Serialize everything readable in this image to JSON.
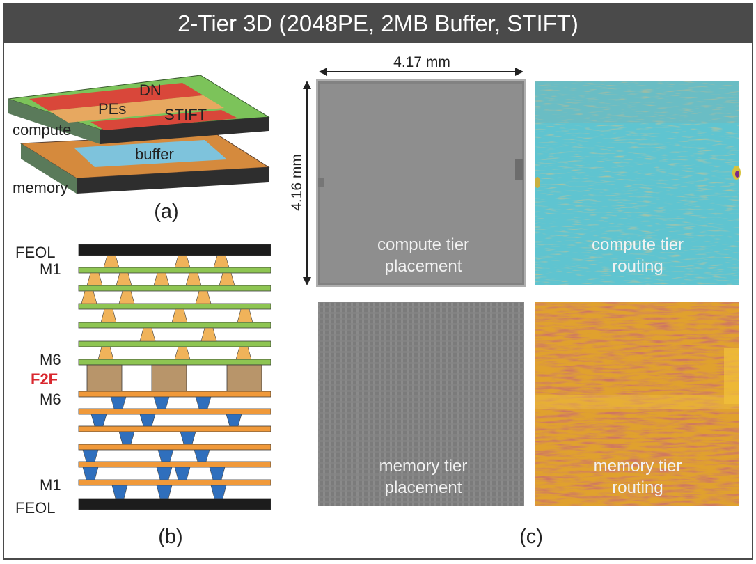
{
  "title": "2-Tier 3D (2048PE, 2MB Buffer, STIFT)",
  "colors": {
    "title_bar": "#4a4a4a",
    "compute_base": "#7cc35a",
    "dn_stripe": "#d9473a",
    "pe_block": "#e7a860",
    "memory_base": "#d58a3d",
    "buffer_block": "#7ec3dc",
    "metal_compute": "#8ec552",
    "metal_memory": "#f0993a",
    "via_compute": "#f0b35a",
    "via_memory": "#2f6fbd",
    "f2f_bond": "#b8956a",
    "feol": "#1c1c1c",
    "f2f_label": "#d9272e"
  },
  "panel_a": {
    "caption": "(a)",
    "labels": {
      "dn": "DN",
      "pes": "PEs",
      "stift": "STIFT",
      "buffer": "buffer",
      "compute": "compute",
      "memory": "memory"
    }
  },
  "panel_b": {
    "caption": "(b)",
    "layer_labels": {
      "feol_top": "FEOL",
      "m1_top": "M1",
      "m6_top": "M6",
      "f2f": "F2F",
      "m6_bottom": "M6",
      "m1_bottom": "M1",
      "feol_bottom": "FEOL"
    }
  },
  "panel_c": {
    "caption": "(c)",
    "width_dim": "4.17 mm",
    "height_dim": "4.16 mm",
    "images": [
      {
        "line1": "compute tier",
        "line2": "placement",
        "icon": "placement-map"
      },
      {
        "line1": "compute tier",
        "line2": "routing",
        "icon": "routing-heatmap"
      },
      {
        "line1": "memory tier",
        "line2": "placement",
        "icon": "placement-map"
      },
      {
        "line1": "memory tier",
        "line2": "routing",
        "icon": "routing-heatmap"
      }
    ]
  }
}
